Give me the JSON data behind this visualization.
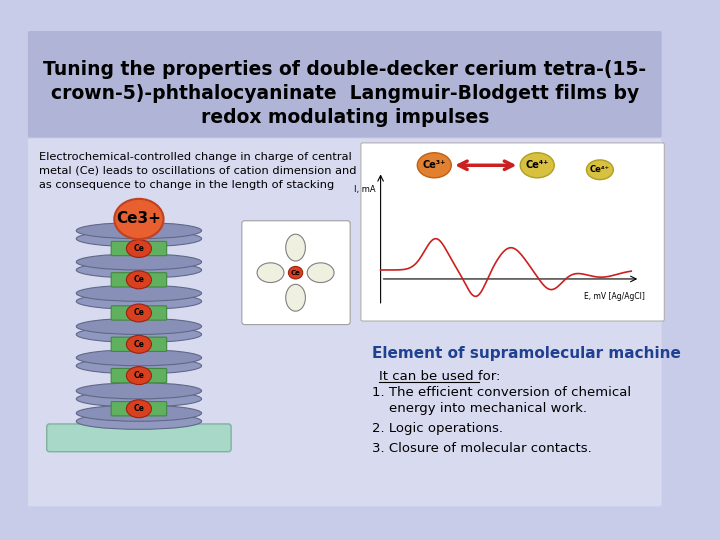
{
  "title_line1": "Tuning the properties of double-decker cerium tetra-(15-",
  "title_line2": "crown-5)-phthalocyaninate  Langmuir-Blodgett films by",
  "title_line3": "redox modulating impulses",
  "background_color": "#c8cce8",
  "title_bg_color": "#b0b5d8",
  "content_bg_color": "#d8daf0",
  "title_text_color": "#000000",
  "body_text_color": "#000000",
  "electrochemical_text": "Electrochemical-controlled change in charge of central\nmetal (Ce) leads to oscillations of cation dimension and\nas consequence to change in the length of stacking",
  "element_label": "Element of supramolecular machine",
  "it_can_label": "It can be used for:",
  "point1a": "1. The efficient conversion of chemical",
  "point1b": "    energy into mechanical work.",
  "point2": "2. Logic operations.",
  "point3": "3. Closure of molecular contacts.",
  "ce3plus_label": "Ce3+",
  "slide_bg": "#c8cce8"
}
